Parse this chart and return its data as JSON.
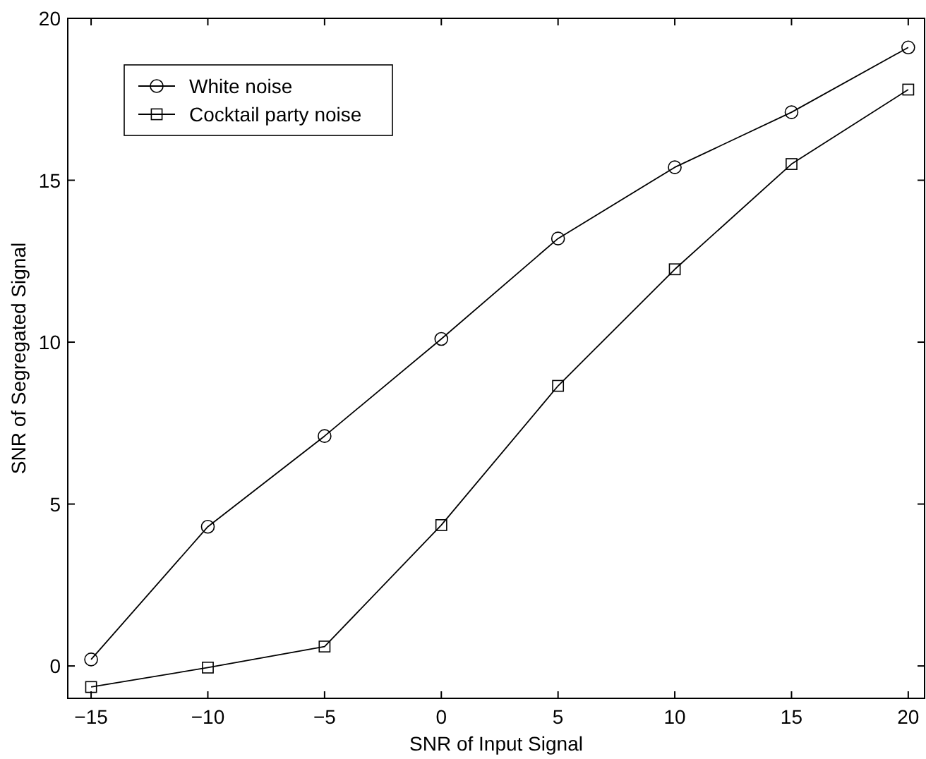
{
  "chart_data": {
    "type": "line",
    "xlabel": "SNR of Input Signal",
    "ylabel": "SNR of Segregated Signal",
    "x": [
      -15,
      -10,
      -5,
      0,
      5,
      10,
      15,
      20
    ],
    "xlim": [
      -16,
      20.7
    ],
    "xticks": [
      -15,
      -10,
      -5,
      0,
      5,
      10,
      15,
      20
    ],
    "ylim": [
      -1,
      20
    ],
    "yticks": [
      0,
      5,
      10,
      15,
      20
    ],
    "legend": "top left",
    "grid": false,
    "line_style": "solid",
    "series": [
      {
        "name": "White noise",
        "color": "#000000",
        "marker": "circle",
        "values": [
          0.2,
          4.3,
          7.1,
          10.1,
          13.2,
          15.4,
          17.1,
          19.1
        ]
      },
      {
        "name": "Cocktail party noise",
        "color": "#000000",
        "marker": "square",
        "values": [
          -0.65,
          -0.05,
          0.6,
          4.35,
          8.65,
          12.25,
          15.5,
          17.8
        ]
      }
    ]
  }
}
